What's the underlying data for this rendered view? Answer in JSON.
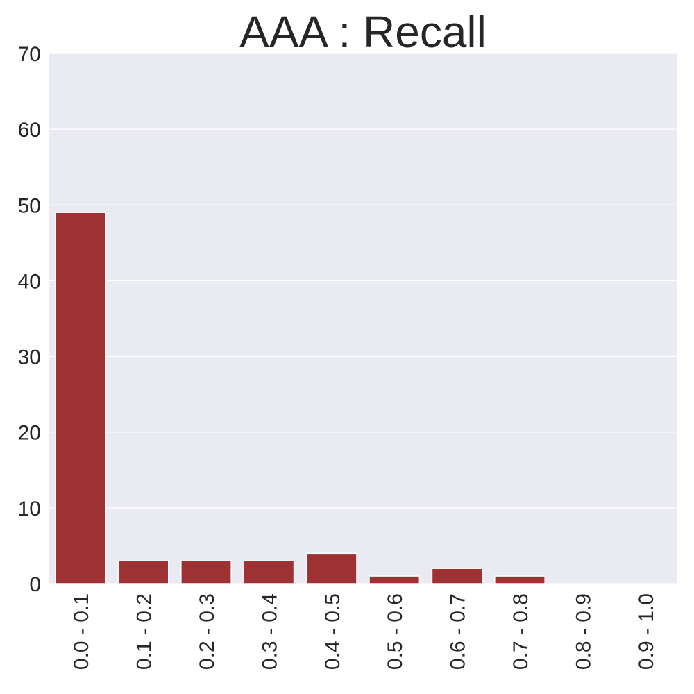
{
  "chart_data": {
    "type": "bar",
    "title": "AAA : Recall",
    "xlabel": "",
    "ylabel": "",
    "categories": [
      "0.0 - 0.1",
      "0.1 - 0.2",
      "0.2 - 0.3",
      "0.3 - 0.4",
      "0.4 - 0.5",
      "0.5 - 0.6",
      "0.6 - 0.7",
      "0.7 - 0.8",
      "0.8 - 0.9",
      "0.9 - 1.0"
    ],
    "values": [
      49,
      3,
      3,
      3,
      4,
      1,
      2,
      1,
      0,
      0
    ],
    "ylim": [
      0,
      70
    ],
    "yticks": [
      "0",
      "10",
      "20",
      "30",
      "40",
      "50",
      "60",
      "70"
    ],
    "grid": true,
    "legend": "none",
    "bar_color": "#9e3133",
    "plot_background": "#eaeaf2",
    "grid_color": "#ffffff"
  }
}
